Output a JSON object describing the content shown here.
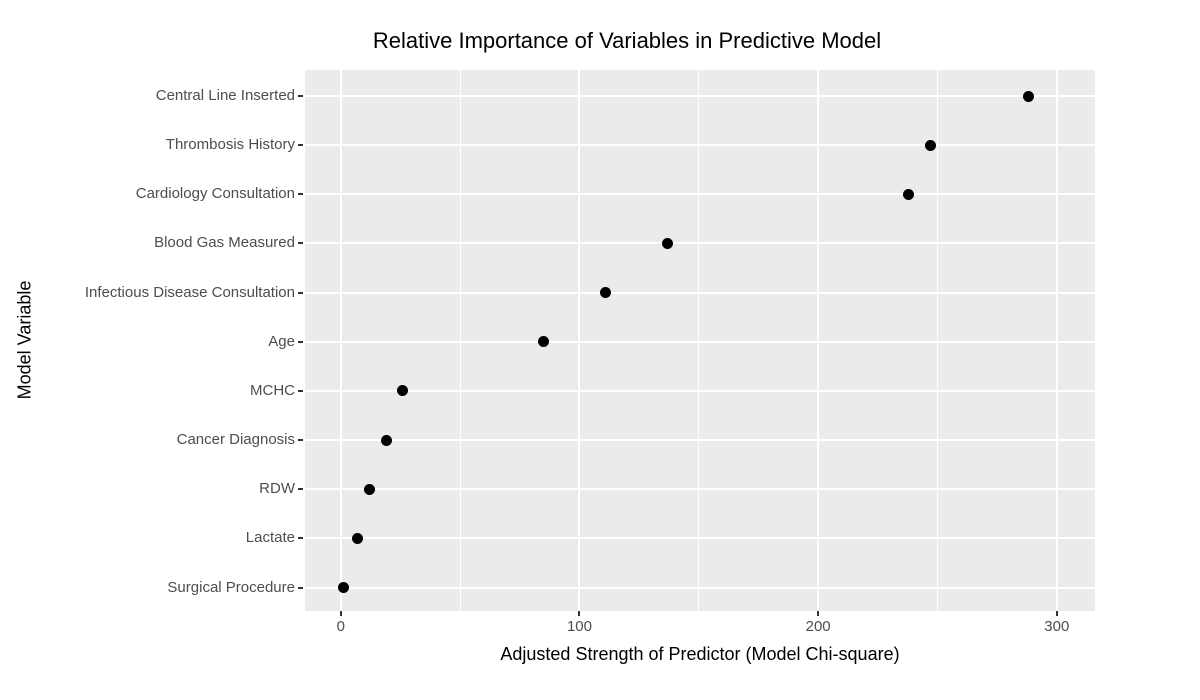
{
  "chart_data": {
    "type": "scatter",
    "subtype": "horizontal-dot-plot",
    "title": "Relative Importance of Variables in Predictive Model",
    "xlabel": "Adjusted Strength of Predictor (Model Chi-square)",
    "ylabel": "Model Variable",
    "categories": [
      "Central Line Inserted",
      "Thrombosis History",
      "Cardiology Consultation",
      "Blood Gas Measured",
      "Infectious Disease Consultation",
      "Age",
      "MCHC",
      "Cancer Diagnosis",
      "RDW",
      "Lactate",
      "Surgical Procedure"
    ],
    "values": [
      288,
      247,
      238,
      137,
      111,
      85,
      26,
      19,
      12,
      7,
      1
    ],
    "x_ticks": [
      0,
      100,
      200,
      300
    ],
    "x_tick_labels": [
      "0",
      "100",
      "200",
      "300"
    ],
    "x_minor_ticks": [
      50,
      150,
      250
    ],
    "xlim": [
      -15,
      316
    ],
    "grid": "major-white-minor-white",
    "legend_position": "none",
    "colors": {
      "point": "#000000",
      "panel_background": "#EBEBEB",
      "gridline": "#FFFFFF",
      "tick_label": "#4D4D4D",
      "axis_title": "#000000",
      "title": "#000000",
      "tick_mark": "#333333"
    }
  }
}
